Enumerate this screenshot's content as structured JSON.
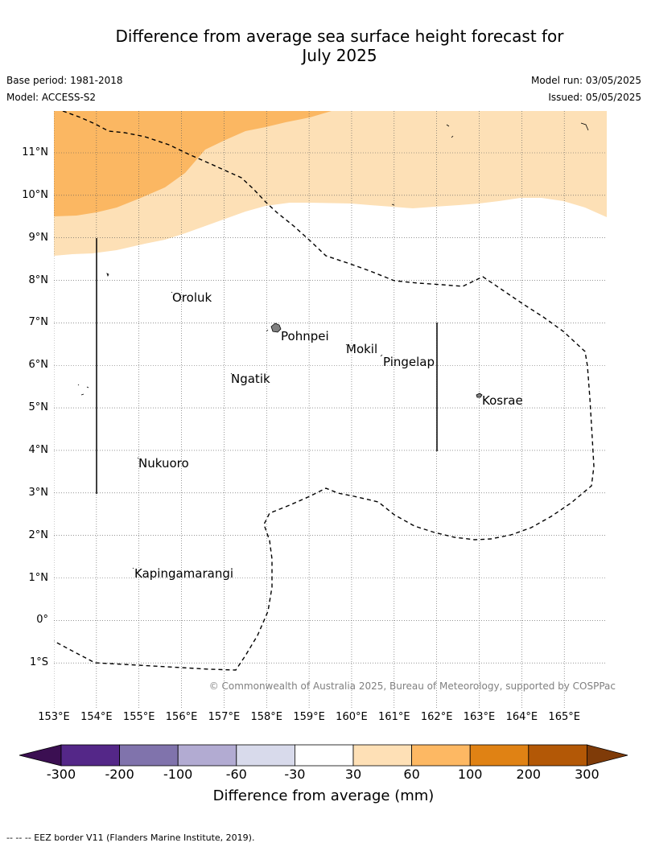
{
  "title": {
    "line1": "Difference from average sea surface height forecast for",
    "line2": "July 2025"
  },
  "meta": {
    "base_period": "Base period: 1981-2018",
    "model": "Model: ACCESS-S2",
    "model_run": "Model run: 03/05/2025",
    "issued": "Issued: 05/05/2025"
  },
  "map": {
    "lat_labels": [
      "11°N",
      "10°N",
      "9°N",
      "8°N",
      "7°N",
      "6°N",
      "5°N",
      "4°N",
      "3°N",
      "2°N",
      "1°N",
      "0°",
      "1°S"
    ],
    "lon_labels": [
      "153°E",
      "154°E",
      "155°E",
      "156°E",
      "157°E",
      "158°E",
      "159°E",
      "160°E",
      "161°E",
      "162°E",
      "163°E",
      "164°E",
      "165°E"
    ],
    "places": [
      {
        "name": "Oroluk"
      },
      {
        "name": "Pohnpei"
      },
      {
        "name": "Mokil"
      },
      {
        "name": "Pingelap"
      },
      {
        "name": "Ngatik"
      },
      {
        "name": "Kosrae"
      },
      {
        "name": "Nukuoro"
      },
      {
        "name": "Kapingamarangi"
      }
    ],
    "copyright": "© Commonwealth of Australia 2025, Bureau of Meteorology, supported by COSPPac",
    "colors": {
      "band_30_60": "#fde0b6",
      "band_60_100": "#fbb762",
      "land": "#808080"
    }
  },
  "colorbar": {
    "title": "Difference from average (mm)",
    "ticks": [
      "-300",
      "-200",
      "-100",
      "-60",
      "-30",
      "30",
      "60",
      "100",
      "200",
      "300"
    ],
    "colors": [
      "#3b0f52",
      "#542788",
      "#8073ac",
      "#b2abd2",
      "#d8daeb",
      "#ffffff",
      "#fee0b6",
      "#fdb863",
      "#e08214",
      "#b35806",
      "#7f3b08"
    ]
  },
  "footer": "--  --  -- EEZ border V11 (Flanders Marine Institute, 2019)."
}
